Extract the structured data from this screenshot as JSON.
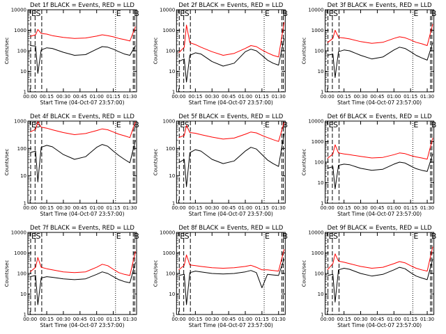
{
  "figure": {
    "panel_title_suffix": "BLACK = Events, RED = LLD",
    "xlabel": "Start Time (04-Oct-07 23:57:00)",
    "ylabel": "Counts/sec",
    "x_ticks": [
      "00:00",
      "00:15",
      "00:30",
      "00:45",
      "01:00",
      "01:15",
      "01:30"
    ],
    "markers": {
      "E": "E",
      "S": "S",
      "B": "B"
    },
    "colors": {
      "events": "#000000",
      "lld": "#ff0000",
      "background": "#ffffff"
    }
  },
  "chart_data": [
    {
      "type": "line",
      "title": "Det 1f",
      "xlabel": "Start Time (04-Oct-07 23:57:00)",
      "ylabel": "Counts/sec",
      "yscale": "log",
      "ylim": [
        1,
        10000
      ],
      "y_ticks": [
        "1",
        "10",
        "100",
        "1000",
        "10000"
      ],
      "x": [
        0,
        5,
        7,
        10,
        15,
        20,
        30,
        40,
        50,
        60,
        65,
        70,
        75,
        80,
        85,
        90,
        95
      ],
      "series": [
        {
          "name": "BLACK = Events",
          "values": [
            180,
            170,
            8,
            110,
            140,
            130,
            85,
            60,
            65,
            120,
            160,
            150,
            120,
            90,
            70,
            60,
            180
          ]
        },
        {
          "name": "RED = LLD",
          "values": [
            500,
            600,
            1100,
            700,
            650,
            550,
            450,
            400,
            420,
            520,
            600,
            550,
            480,
            400,
            350,
            300,
            1500
          ]
        }
      ],
      "events": [
        {
          "label": "E",
          "x": 0.5
        },
        {
          "label": "S",
          "x": 4.5
        },
        {
          "label": "E",
          "x": 77
        },
        {
          "label": "B",
          "x": 93
        }
      ]
    },
    {
      "type": "line",
      "title": "Det 2f",
      "xlabel": "Start Time (04-Oct-07 23:57:00)",
      "ylabel": "Counts/sec",
      "yscale": "log",
      "ylim": [
        1,
        10000
      ],
      "y_ticks": [
        "1",
        "10",
        "100",
        "1000",
        "10000"
      ],
      "x": [
        0,
        5,
        7,
        10,
        15,
        20,
        30,
        40,
        50,
        60,
        65,
        70,
        75,
        80,
        85,
        90,
        95
      ],
      "series": [
        {
          "name": "BLACK = Events",
          "values": [
            30,
            40,
            3,
            60,
            80,
            70,
            30,
            18,
            25,
            90,
            120,
            100,
            60,
            35,
            25,
            20,
            400
          ]
        },
        {
          "name": "RED = LLD",
          "values": [
            80,
            150,
            1800,
            250,
            200,
            150,
            90,
            60,
            75,
            130,
            180,
            160,
            110,
            80,
            60,
            50,
            2500
          ]
        }
      ],
      "events": [
        {
          "label": "E",
          "x": 0.5
        },
        {
          "label": "S",
          "x": 4.5
        },
        {
          "label": "E",
          "x": 77
        },
        {
          "label": "B",
          "x": 93
        }
      ]
    },
    {
      "type": "line",
      "title": "Det 3f",
      "xlabel": "Start Time (04-Oct-07 23:57:00)",
      "ylabel": "Counts/sec",
      "yscale": "log",
      "ylim": [
        1,
        10000
      ],
      "y_ticks": [
        "1",
        "10",
        "100",
        "1000",
        "10000"
      ],
      "x": [
        0,
        5,
        7,
        10,
        15,
        20,
        30,
        40,
        50,
        60,
        65,
        70,
        75,
        80,
        85,
        90,
        95
      ],
      "series": [
        {
          "name": "BLACK = Events",
          "values": [
            60,
            70,
            5,
            90,
            110,
            100,
            60,
            40,
            50,
            110,
            150,
            130,
            90,
            60,
            45,
            35,
            250
          ]
        },
        {
          "name": "RED = LLD",
          "values": [
            250,
            400,
            1000,
            450,
            420,
            380,
            280,
            230,
            260,
            400,
            480,
            430,
            340,
            260,
            220,
            180,
            2000
          ]
        }
      ],
      "events": [
        {
          "label": "E",
          "x": 0.5
        },
        {
          "label": "S",
          "x": 4.5
        },
        {
          "label": "E",
          "x": 77
        },
        {
          "label": "B",
          "x": 93
        }
      ]
    },
    {
      "type": "line",
      "title": "Det 4f",
      "xlabel": "Start Time (04-Oct-07 23:57:00)",
      "ylabel": "Counts/sec",
      "yscale": "log",
      "ylim": [
        1,
        1000
      ],
      "y_ticks": [
        "1",
        "10",
        "100",
        "1000"
      ],
      "x": [
        0,
        5,
        7,
        10,
        15,
        20,
        30,
        40,
        50,
        60,
        65,
        70,
        75,
        80,
        85,
        90,
        95
      ],
      "series": [
        {
          "name": "BLACK = Events",
          "values": [
            70,
            80,
            6,
            110,
            130,
            115,
            60,
            40,
            50,
            110,
            140,
            120,
            80,
            55,
            40,
            30,
            200
          ]
        },
        {
          "name": "RED = LLD",
          "values": [
            400,
            500,
            950,
            600,
            550,
            480,
            380,
            320,
            350,
            450,
            520,
            480,
            400,
            330,
            290,
            250,
            950
          ]
        }
      ],
      "events": [
        {
          "label": "E",
          "x": 0.5
        },
        {
          "label": "S",
          "x": 4.5
        },
        {
          "label": "E",
          "x": 77
        },
        {
          "label": "B",
          "x": 93
        }
      ]
    },
    {
      "type": "line",
      "title": "Det 5f",
      "xlabel": "Start Time (04-Oct-07 23:57:00)",
      "ylabel": "Counts/sec",
      "yscale": "log",
      "ylim": [
        1,
        1000
      ],
      "y_ticks": [
        "1",
        "10",
        "100",
        "1000"
      ],
      "x": [
        0,
        5,
        7,
        10,
        15,
        20,
        30,
        40,
        50,
        60,
        65,
        70,
        75,
        80,
        85,
        90,
        95
      ],
      "series": [
        {
          "name": "BLACK = Events",
          "values": [
            30,
            40,
            4,
            70,
            90,
            80,
            40,
            28,
            35,
            80,
            110,
            95,
            60,
            38,
            28,
            22,
            350
          ]
        },
        {
          "name": "RED = LLD",
          "values": [
            250,
            300,
            700,
            380,
            360,
            320,
            260,
            220,
            240,
            330,
            400,
            370,
            300,
            250,
            210,
            180,
            900
          ]
        }
      ],
      "events": [
        {
          "label": "E",
          "x": 0.5
        },
        {
          "label": "S",
          "x": 4.5
        },
        {
          "label": "E",
          "x": 77
        },
        {
          "label": "B",
          "x": 93
        }
      ]
    },
    {
      "type": "line",
      "title": "Det 6f",
      "xlabel": "Start Time (04-Oct-07 23:57:00)",
      "ylabel": "Counts/sec",
      "yscale": "log",
      "ylim": [
        1,
        10000
      ],
      "y_ticks": [
        "1",
        "10",
        "100",
        "1000",
        "10000"
      ],
      "x": [
        0,
        5,
        7,
        10,
        15,
        20,
        30,
        40,
        50,
        60,
        65,
        70,
        75,
        80,
        85,
        90,
        95
      ],
      "series": [
        {
          "name": "BLACK = Events",
          "values": [
            50,
            60,
            5,
            70,
            80,
            75,
            50,
            40,
            45,
            80,
            100,
            90,
            65,
            48,
            40,
            35,
            250
          ]
        },
        {
          "name": "RED = LLD",
          "values": [
            150,
            250,
            700,
            280,
            250,
            230,
            190,
            160,
            170,
            230,
            280,
            260,
            210,
            180,
            160,
            140,
            1500
          ]
        }
      ],
      "events": [
        {
          "label": "E",
          "x": 0.5
        },
        {
          "label": "S",
          "x": 4.5
        },
        {
          "label": "E",
          "x": 77
        },
        {
          "label": "B",
          "x": 93
        }
      ]
    },
    {
      "type": "line",
      "title": "Det 7f",
      "xlabel": "Start Time (04-Oct-07 23:57:00)",
      "ylabel": "Counts/sec",
      "yscale": "log",
      "ylim": [
        1,
        10000
      ],
      "y_ticks": [
        "1",
        "10",
        "100",
        "1000",
        "10000"
      ],
      "x": [
        0,
        5,
        7,
        10,
        15,
        20,
        30,
        40,
        50,
        60,
        65,
        70,
        75,
        80,
        85,
        90,
        95
      ],
      "series": [
        {
          "name": "BLACK = Events",
          "values": [
            70,
            80,
            3,
            60,
            70,
            65,
            55,
            50,
            55,
            90,
            120,
            100,
            70,
            50,
            40,
            35,
            350
          ]
        },
        {
          "name": "RED = LLD",
          "values": [
            120,
            200,
            600,
            200,
            170,
            150,
            120,
            110,
            120,
            200,
            280,
            240,
            160,
            110,
            90,
            80,
            1200
          ]
        }
      ],
      "events": [
        {
          "label": "E",
          "x": 0.5
        },
        {
          "label": "S",
          "x": 4.5
        },
        {
          "label": "E",
          "x": 77
        },
        {
          "label": "B",
          "x": 93
        }
      ]
    },
    {
      "type": "line",
      "title": "Det 8f",
      "xlabel": "Start Time (04-Oct-07 23:57:00)",
      "ylabel": "Counts/sec",
      "yscale": "log",
      "ylim": [
        1,
        10000
      ],
      "y_ticks": [
        "1",
        "10",
        "100",
        "1000",
        "10000"
      ],
      "x": [
        0,
        5,
        7,
        10,
        15,
        20,
        30,
        40,
        50,
        60,
        65,
        70,
        75,
        80,
        85,
        90,
        95
      ],
      "series": [
        {
          "name": "BLACK = Events",
          "values": [
            80,
            90,
            3,
            110,
            130,
            120,
            100,
            95,
            100,
            120,
            140,
            110,
            20,
            90,
            85,
            80,
            500
          ]
        },
        {
          "name": "RED = LLD",
          "values": [
            150,
            250,
            800,
            260,
            240,
            220,
            190,
            180,
            190,
            220,
            250,
            200,
            150,
            150,
            140,
            130,
            1500
          ]
        }
      ],
      "events": [
        {
          "label": "E",
          "x": 0.5
        },
        {
          "label": "S",
          "x": 4.5
        },
        {
          "label": "E",
          "x": 77
        },
        {
          "label": "B",
          "x": 93
        }
      ]
    },
    {
      "type": "line",
      "title": "Det 9f",
      "xlabel": "Start Time (04-Oct-07 23:57:00)",
      "ylabel": "Counts/sec",
      "yscale": "log",
      "ylim": [
        1,
        10000
      ],
      "y_ticks": [
        "1",
        "10",
        "100",
        "1000",
        "10000"
      ],
      "x": [
        0,
        5,
        7,
        10,
        15,
        20,
        30,
        40,
        50,
        60,
        65,
        70,
        75,
        80,
        85,
        90,
        95
      ],
      "series": [
        {
          "name": "BLACK = Events",
          "values": [
            80,
            90,
            4,
            150,
            180,
            160,
            100,
            75,
            90,
            150,
            200,
            170,
            110,
            75,
            60,
            50,
            500
          ]
        },
        {
          "name": "RED = LLD",
          "values": [
            150,
            300,
            900,
            400,
            350,
            300,
            220,
            180,
            200,
            300,
            380,
            330,
            240,
            180,
            150,
            130,
            2000
          ]
        }
      ],
      "events": [
        {
          "label": "E",
          "x": 0.5
        },
        {
          "label": "S",
          "x": 4.5
        },
        {
          "label": "E",
          "x": 77
        },
        {
          "label": "B",
          "x": 93
        }
      ]
    }
  ]
}
